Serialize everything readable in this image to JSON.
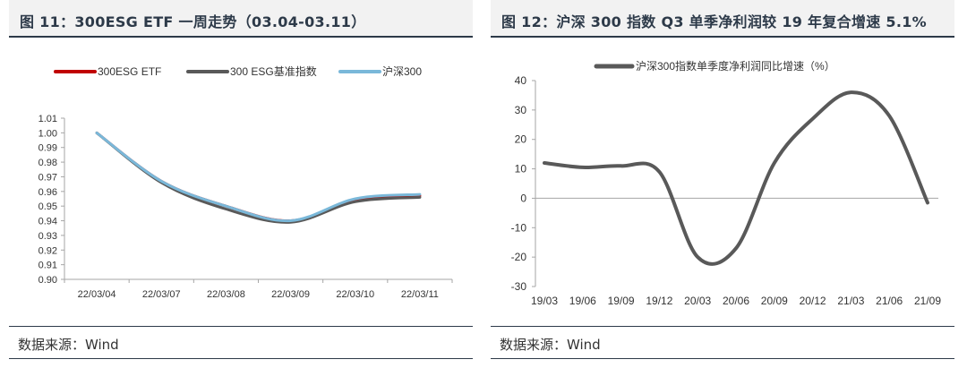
{
  "left": {
    "title": "图 11：300ESG ETF 一周走势（03.04-03.11）",
    "source": "数据来源：Wind"
  },
  "right": {
    "title": "图 12：沪深 300 指数 Q3 单季净利润较 19 年复合增速 5.1%",
    "source": "数据来源：Wind"
  },
  "chart_data": [
    {
      "type": "line",
      "title": "",
      "xlabel": "",
      "ylabel": "",
      "x": [
        "22/03/04",
        "22/03/07",
        "22/03/08",
        "22/03/09",
        "22/03/10",
        "22/03/11"
      ],
      "ylim": [
        0.9,
        1.01
      ],
      "yticks": [
        "1.01",
        "1.00",
        "0.99",
        "0.98",
        "0.97",
        "0.96",
        "0.95",
        "0.94",
        "0.93",
        "0.92",
        "0.91",
        "0.90"
      ],
      "legend_position": "top",
      "series": [
        {
          "name": "300ESG ETF",
          "color": "#c00000",
          "values": [
            1.0,
            0.967,
            0.95,
            0.94,
            0.954,
            0.957
          ]
        },
        {
          "name": "300 ESG基准指数",
          "color": "#595959",
          "values": [
            1.0,
            0.966,
            0.948,
            0.939,
            0.953,
            0.956
          ]
        },
        {
          "name": "沪深300",
          "color": "#7ab8d9",
          "values": [
            1.0,
            0.967,
            0.95,
            0.94,
            0.955,
            0.958
          ]
        }
      ]
    },
    {
      "type": "line",
      "title": "",
      "xlabel": "",
      "ylabel": "",
      "x": [
        "19/03",
        "19/06",
        "19/09",
        "19/12",
        "20/03",
        "20/06",
        "20/09",
        "20/12",
        "21/03",
        "21/06",
        "21/09"
      ],
      "ylim": [
        -30,
        40
      ],
      "yticks": [
        "40",
        "30",
        "20",
        "10",
        "0",
        "-10",
        "-20",
        "-30"
      ],
      "legend_position": "top",
      "series": [
        {
          "name": "沪深300指数单季度净利润同比增速（%）",
          "color": "#595959",
          "values": [
            12,
            10.5,
            11,
            9,
            -20,
            -17,
            12,
            27,
            36,
            28,
            -1.5
          ]
        }
      ]
    }
  ]
}
